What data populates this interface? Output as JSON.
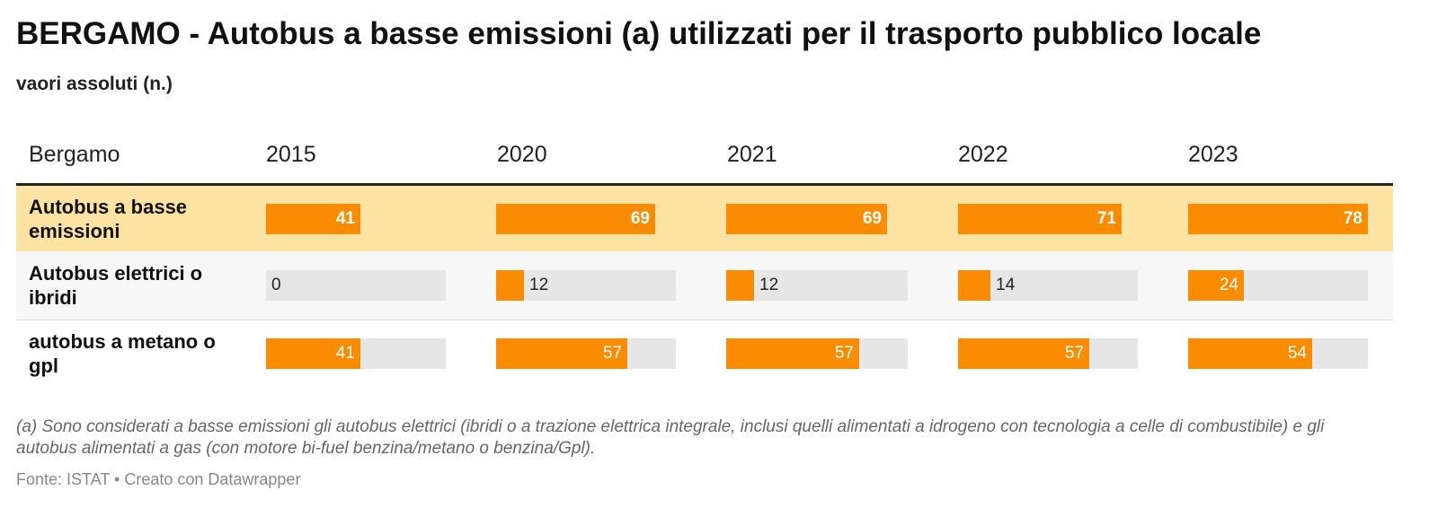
{
  "title": "BERGAMO - Autobus a basse emissioni (a) utilizzati per il trasporto pubblico locale",
  "subtitle": "vaori assoluti (n.)",
  "note": "(a) Sono considerati a basse emissioni gli autobus elettrici (ibridi o a trazione elettrica integrale, inclusi quelli alimentati a idrogeno con tecnologia a celle di combustibile) e gli autobus alimentati a gas (con motore bi-fuel benzina/metano o benzina/Gpl).",
  "source": "Fonte: ISTAT • Creato con Datawrapper",
  "colors": {
    "bar": "#f98c00",
    "track": "#e6e6e6",
    "highlight_row": "#fde3a3"
  },
  "chart_data": {
    "type": "table",
    "row_header": "Bergamo",
    "columns": [
      "2015",
      "2020",
      "2021",
      "2022",
      "2023"
    ],
    "max_value": 78,
    "rows": [
      {
        "label": "Autobus a basse emissioni",
        "values": [
          41,
          69,
          69,
          71,
          78
        ],
        "highlighted": true
      },
      {
        "label": "Autobus elettrici o ibridi",
        "values": [
          0,
          12,
          12,
          14,
          24
        ],
        "highlighted": false
      },
      {
        "label": "autobus a metano o gpl",
        "values": [
          41,
          57,
          57,
          57,
          54
        ],
        "highlighted": false
      }
    ]
  }
}
